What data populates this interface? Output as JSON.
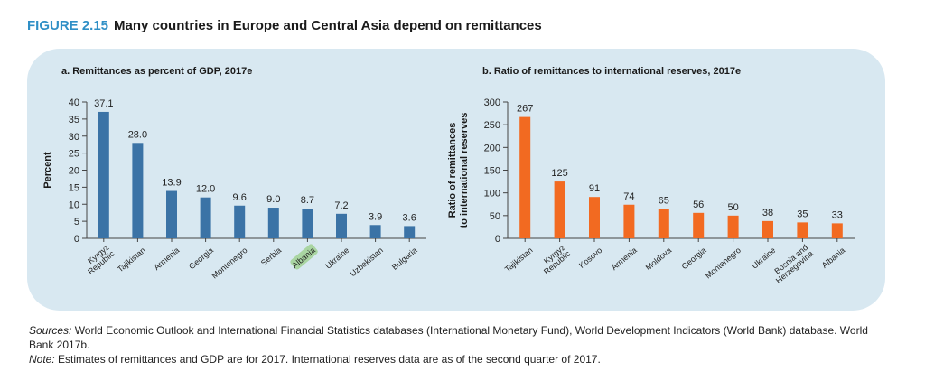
{
  "figure": {
    "number": "FIGURE 2.15",
    "title": "Many countries in Europe and Central Asia depend on remittances"
  },
  "chart_data": [
    {
      "type": "bar",
      "title": "a. Remittances as percent of GDP, 2017e",
      "ylabel": "Percent",
      "ylim": [
        0,
        40
      ],
      "yticks": [
        0,
        5,
        10,
        15,
        20,
        25,
        30,
        35,
        40
      ],
      "color": "#3b73a6",
      "categories": [
        "Kyrgyz Republic",
        "Tajikistan",
        "Armenia",
        "Georgia",
        "Montenegro",
        "Serbia",
        "Albania",
        "Ukraine",
        "Uzbekistan",
        "Bulgaria"
      ],
      "values": [
        37.1,
        28.0,
        13.9,
        12.0,
        9.6,
        9.0,
        8.7,
        7.2,
        3.9,
        3.6
      ],
      "value_labels": [
        "37.1",
        "28.0",
        "13.9",
        "12.0",
        "9.6",
        "9.0",
        "8.7",
        "7.2",
        "3.9",
        "3.6"
      ],
      "highlighted_category": "Albania",
      "highlight_color": "#a9d5a2"
    },
    {
      "type": "bar",
      "title": "b. Ratio of remittances to international reserves, 2017e",
      "ylabel": "Ratio of remittances to international reserves",
      "ylim": [
        0,
        300
      ],
      "yticks": [
        0,
        50,
        100,
        150,
        200,
        250,
        300
      ],
      "color": "#f26a21",
      "categories": [
        "Tajikistan",
        "Kyrgyz Republic",
        "Kosovo",
        "Armenia",
        "Moldova",
        "Georgia",
        "Montenegro",
        "Ukraine",
        "Bosnia and Herzegovina",
        "Albania"
      ],
      "values": [
        267,
        125,
        91,
        74,
        65,
        56,
        50,
        38,
        35,
        33
      ],
      "value_labels": [
        "267",
        "125",
        "91",
        "74",
        "65",
        "56",
        "50",
        "38",
        "35",
        "33"
      ]
    }
  ],
  "footer": {
    "sources_label": "Sources:",
    "sources_text": " World Economic Outlook and International Financial Statistics databases (International Monetary Fund), World Development Indicators (World Bank) database. World Bank 2017b.",
    "note_label": "Note:",
    "note_text": " Estimates of remittances and GDP are for 2017. International reserves data are as of the second quarter of 2017."
  }
}
